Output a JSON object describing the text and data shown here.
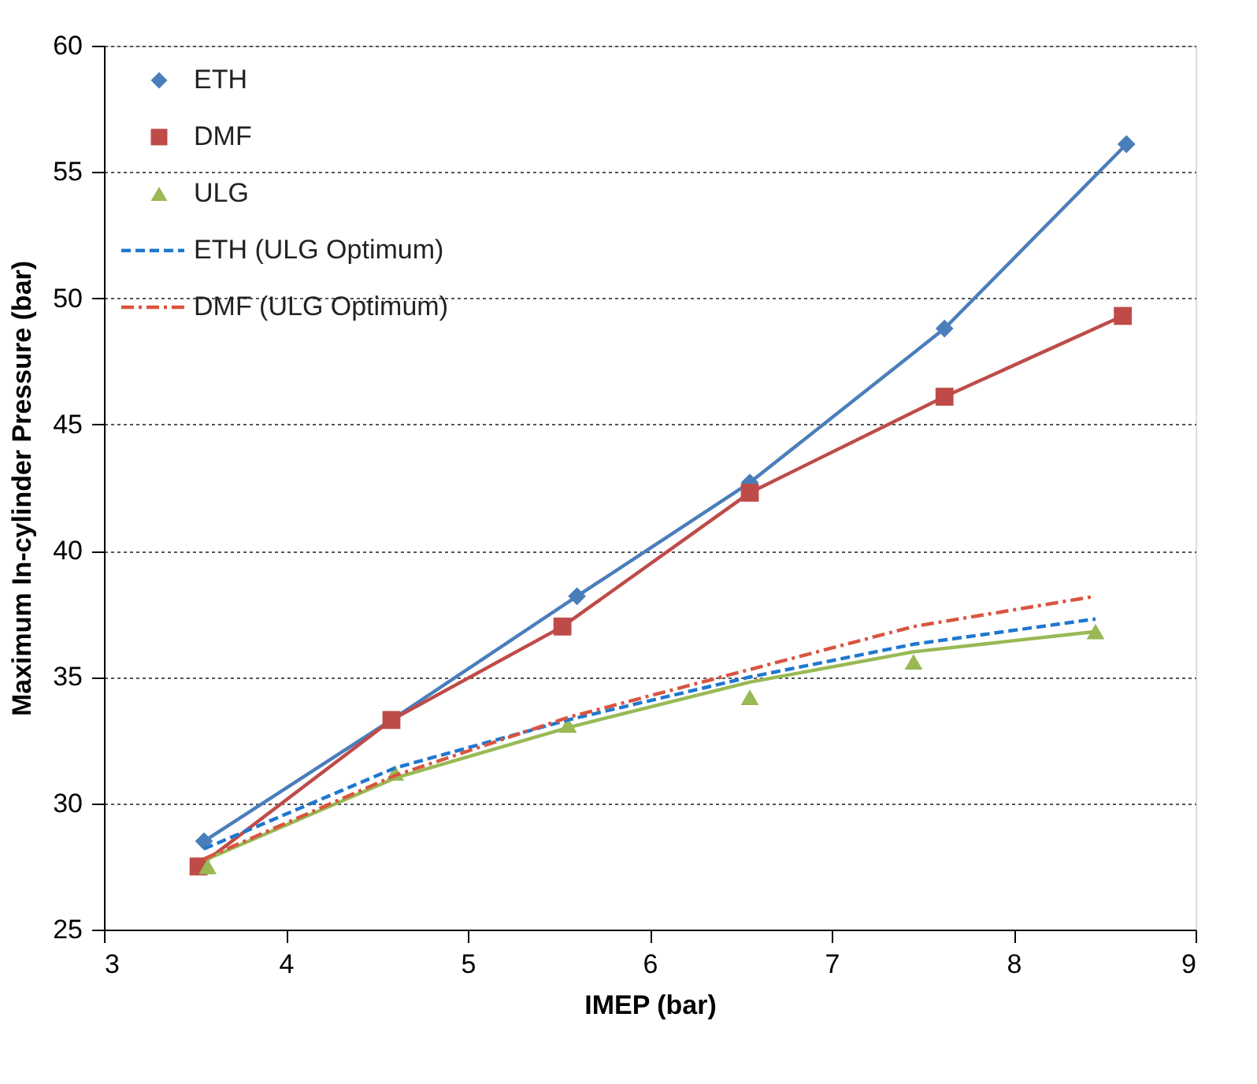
{
  "chart_data": {
    "type": "line",
    "xlabel": "IMEP (bar)",
    "ylabel": "Maximum In-cylinder Pressure (bar)",
    "xlim": [
      3,
      9
    ],
    "xticks": [
      3,
      4,
      5,
      6,
      7,
      8,
      9
    ],
    "ylim": [
      25,
      60
    ],
    "yticks": [
      25,
      30,
      35,
      40,
      45,
      50,
      55,
      60
    ],
    "grid": "y",
    "legend": "top left",
    "series": [
      {
        "name": "ETH",
        "color": "#4a7ebb",
        "marker": "diamond",
        "line_style": "solid",
        "x": [
          3.55,
          4.58,
          5.6,
          6.55,
          7.62,
          8.62
        ],
        "values": [
          28.5,
          33.3,
          38.2,
          42.7,
          48.8,
          56.1
        ]
      },
      {
        "name": "DMF",
        "color": "#be4b48",
        "marker": "square",
        "line_style": "solid",
        "x": [
          3.52,
          4.58,
          5.52,
          6.55,
          7.62,
          8.6
        ],
        "values": [
          27.5,
          33.3,
          37.0,
          42.3,
          46.1,
          49.3
        ]
      },
      {
        "name": "ULG",
        "color": "#98b954",
        "type": "scatter",
        "marker": "triangle",
        "x": [
          3.57,
          4.6,
          5.55,
          6.55,
          7.45,
          8.45
        ],
        "values": [
          27.5,
          31.2,
          33.1,
          34.2,
          35.6,
          36.8
        ]
      },
      {
        "color": "#98b954",
        "marker": "none",
        "line_style": "solid",
        "x": [
          3.57,
          4.6,
          5.55,
          6.55,
          7.45,
          8.45
        ],
        "values": [
          27.8,
          31.0,
          33.0,
          34.8,
          36.0,
          36.8
        ]
      },
      {
        "name": "ETH (ULG Optimum)",
        "color": "#1f77d0",
        "marker": "none",
        "line_style": "dashed",
        "x": [
          3.55,
          4.6,
          5.55,
          6.55,
          7.45,
          8.45
        ],
        "values": [
          28.2,
          31.4,
          33.3,
          35.0,
          36.3,
          37.3
        ]
      },
      {
        "name": "DMF (ULG Optimum)",
        "color": "#d9553f",
        "marker": "none",
        "line_style": "dashdot",
        "x": [
          3.55,
          4.6,
          5.55,
          6.55,
          7.45,
          8.45
        ],
        "values": [
          27.8,
          31.1,
          33.4,
          35.3,
          37.0,
          38.2
        ]
      }
    ]
  }
}
